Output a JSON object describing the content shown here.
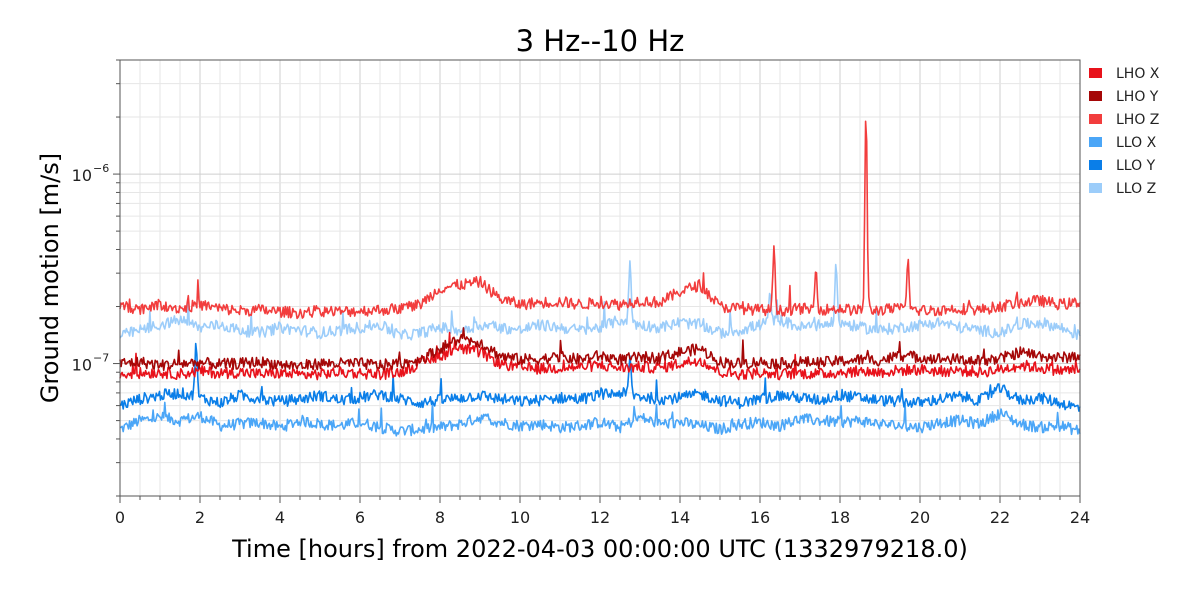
{
  "chart_data": {
    "type": "line",
    "title": "3 Hz--10 Hz",
    "xlabel": "Time [hours] from 2022-04-03 00:00:00 UTC (1332979218.0)",
    "ylabel": "Ground motion [m/s]",
    "x_range": [
      0,
      24
    ],
    "y_range": [
      2e-08,
      4e-06
    ],
    "y_scale": "log",
    "grid": true,
    "legend_position": "outside-right-top",
    "x_ticks": [
      0,
      2,
      4,
      6,
      8,
      10,
      12,
      14,
      16,
      18,
      20,
      22,
      24
    ],
    "x_tick_labels": [
      "0",
      "2",
      "4",
      "6",
      "8",
      "10",
      "12",
      "14",
      "16",
      "18",
      "20",
      "22",
      "24"
    ],
    "y_ticks": [
      1e-07,
      1e-06
    ],
    "y_tick_labels": [
      {
        "base": "10",
        "exp": "−7"
      },
      {
        "base": "10",
        "exp": "−6"
      }
    ],
    "series": [
      {
        "name": "LHO X",
        "color": "#e8121b",
        "x": [
          0,
          0.5,
          1,
          1.5,
          2,
          2.5,
          3,
          3.5,
          4,
          4.5,
          5,
          5.5,
          6,
          6.5,
          7,
          7.5,
          8,
          8.5,
          9,
          9.5,
          10,
          10.5,
          11,
          11.5,
          12,
          12.5,
          13,
          13.5,
          14,
          14.5,
          15,
          15.5,
          16,
          16.5,
          17,
          17.5,
          18,
          18.5,
          19,
          19.5,
          20,
          20.5,
          21,
          21.5,
          22,
          22.5,
          23,
          23.5,
          24
        ],
        "y": [
          8.8e-08,
          8.9e-08,
          9e-08,
          8.8e-08,
          9.1e-08,
          8.9e-08,
          9e-08,
          8.8e-08,
          8.9e-08,
          8.7e-08,
          8.8e-08,
          9e-08,
          8.9e-08,
          8.8e-08,
          9e-08,
          1e-07,
          1.1e-07,
          1.2e-07,
          1.15e-07,
          1e-07,
          9.5e-08,
          9.4e-08,
          9.5e-08,
          9.6e-08,
          9.8e-08,
          9.5e-08,
          9.6e-08,
          9.5e-08,
          1e-07,
          1.05e-07,
          9e-08,
          8.8e-08,
          8.9e-08,
          8.8e-08,
          8.9e-08,
          8.8e-08,
          9e-08,
          9.1e-08,
          9e-08,
          9.2e-08,
          9.3e-08,
          9.1e-08,
          9.2e-08,
          9e-08,
          9.3e-08,
          9.8e-08,
          9.5e-08,
          9.2e-08,
          9.3e-08
        ]
      },
      {
        "name": "LHO Y",
        "color": "#a50707",
        "x": [
          0,
          0.5,
          1,
          1.5,
          2,
          2.5,
          3,
          3.5,
          4,
          4.5,
          5,
          5.5,
          6,
          6.5,
          7,
          7.5,
          8,
          8.5,
          9,
          9.5,
          10,
          10.5,
          11,
          11.5,
          12,
          12.5,
          13,
          13.5,
          14,
          14.5,
          15,
          15.5,
          16,
          16.5,
          17,
          17.5,
          18,
          18.5,
          19,
          19.5,
          20,
          20.5,
          21,
          21.5,
          22,
          22.5,
          23,
          23.5,
          24
        ],
        "y": [
          1e-07,
          1.02e-07,
          9.8e-08,
          1e-07,
          1.01e-07,
          9.9e-08,
          1e-07,
          1.02e-07,
          9.9e-08,
          9.7e-08,
          1e-07,
          1e-07,
          1e-07,
          9.8e-08,
          1e-07,
          1.05e-07,
          1.2e-07,
          1.35e-07,
          1.3e-07,
          1.1e-07,
          1.05e-07,
          1.06e-07,
          1.08e-07,
          1.05e-07,
          1.1e-07,
          1.05e-07,
          1.08e-07,
          1.07e-07,
          1.15e-07,
          1.2e-07,
          1.02e-07,
          1e-07,
          1.02e-07,
          1e-07,
          1.02e-07,
          1.01e-07,
          1.03e-07,
          1.05e-07,
          1.04e-07,
          1.1e-07,
          1.08e-07,
          1.06e-07,
          1.05e-07,
          1.03e-07,
          1.06e-07,
          1.15e-07,
          1.1e-07,
          1.07e-07,
          1.1e-07
        ]
      },
      {
        "name": "LHO Z",
        "color": "#f23d3d",
        "x": [
          0,
          0.5,
          1,
          1.5,
          2,
          2.5,
          3,
          3.5,
          4,
          4.5,
          5,
          5.5,
          6,
          6.5,
          7,
          7.5,
          8,
          8.5,
          9,
          9.5,
          10,
          10.5,
          11,
          11.5,
          12,
          12.5,
          13,
          13.5,
          14,
          14.5,
          15,
          15.5,
          16,
          16.5,
          17,
          17.5,
          18,
          18.5,
          19,
          19.5,
          20,
          20.5,
          21,
          21.5,
          22,
          22.5,
          23,
          23.5,
          24
        ],
        "y": [
          2e-07,
          1.95e-07,
          2.05e-07,
          1.95e-07,
          2.05e-07,
          1.95e-07,
          1.9e-07,
          1.92e-07,
          1.88e-07,
          1.85e-07,
          1.9e-07,
          1.88e-07,
          1.9e-07,
          1.92e-07,
          1.95e-07,
          2.05e-07,
          2.5e-07,
          2.6e-07,
          2.7e-07,
          2.2e-07,
          2.05e-07,
          2.1e-07,
          2.12e-07,
          2.05e-07,
          2.1e-07,
          2.05e-07,
          2.15e-07,
          2.1e-07,
          2.4e-07,
          2.6e-07,
          2e-07,
          1.95e-07,
          1.92e-07,
          1.9e-07,
          1.95e-07,
          1.92e-07,
          1.95e-07,
          1.9e-07,
          1.92e-07,
          1.95e-07,
          1.9e-07,
          1.92e-07,
          1.95e-07,
          1.92e-07,
          2e-07,
          2.1e-07,
          2.15e-07,
          2.05e-07,
          2.1e-07
        ]
      },
      {
        "name": "LLO X",
        "color": "#4ba6f7",
        "x": [
          0,
          0.5,
          1,
          1.5,
          2,
          2.5,
          3,
          3.5,
          4,
          4.5,
          5,
          5.5,
          6,
          6.5,
          7,
          7.5,
          8,
          8.5,
          9,
          9.5,
          10,
          10.5,
          11,
          11.5,
          12,
          12.5,
          13,
          13.5,
          14,
          14.5,
          15,
          15.5,
          16,
          16.5,
          17,
          17.5,
          18,
          18.5,
          19,
          19.5,
          20,
          20.5,
          21,
          21.5,
          22,
          22.5,
          23,
          23.5,
          24
        ],
        "y": [
          4.5e-08,
          5e-08,
          5.2e-08,
          5e-08,
          5.3e-08,
          4.7e-08,
          4.8e-08,
          4.9e-08,
          4.6e-08,
          5e-08,
          4.8e-08,
          4.7e-08,
          4.9e-08,
          4.6e-08,
          4.4e-08,
          4.5e-08,
          4.6e-08,
          4.8e-08,
          5.2e-08,
          4.9e-08,
          4.7e-08,
          4.8e-08,
          4.6e-08,
          4.7e-08,
          4.9e-08,
          4.6e-08,
          5.2e-08,
          4.8e-08,
          4.9e-08,
          4.7e-08,
          4.5e-08,
          4.8e-08,
          4.9e-08,
          4.7e-08,
          5.1e-08,
          5e-08,
          4.9e-08,
          5e-08,
          4.8e-08,
          4.7e-08,
          4.6e-08,
          4.9e-08,
          5e-08,
          4.8e-08,
          5.5e-08,
          4.8e-08,
          4.6e-08,
          4.7e-08,
          4.4e-08
        ]
      },
      {
        "name": "LLO Y",
        "color": "#0a7ee8",
        "x": [
          0,
          0.5,
          1,
          1.5,
          2,
          2.5,
          3,
          3.5,
          4,
          4.5,
          5,
          5.5,
          6,
          6.5,
          7,
          7.5,
          8,
          8.5,
          9,
          9.5,
          10,
          10.5,
          11,
          11.5,
          12,
          12.5,
          13,
          13.5,
          14,
          14.5,
          15,
          15.5,
          16,
          16.5,
          17,
          17.5,
          18,
          18.5,
          19,
          19.5,
          20,
          20.5,
          21,
          21.5,
          22,
          22.5,
          23,
          23.5,
          24
        ],
        "y": [
          6e-08,
          6.5e-08,
          6.8e-08,
          7e-08,
          6.6e-08,
          6.2e-08,
          6.8e-08,
          6.5e-08,
          6.3e-08,
          6.5e-08,
          6.8e-08,
          6.4e-08,
          6.6e-08,
          6.9e-08,
          6.5e-08,
          6.2e-08,
          6.4e-08,
          6.6e-08,
          6.8e-08,
          6.5e-08,
          6.3e-08,
          6.4e-08,
          6.6e-08,
          6.5e-08,
          6.8e-08,
          7e-08,
          6.7e-08,
          6.5e-08,
          6.6e-08,
          6.9e-08,
          6.4e-08,
          6.2e-08,
          6.5e-08,
          6.8e-08,
          6.6e-08,
          6.4e-08,
          6.8e-08,
          6.6e-08,
          6.4e-08,
          6.3e-08,
          6.2e-08,
          6.5e-08,
          6.7e-08,
          6.4e-08,
          7.4e-08,
          6.4e-08,
          6.6e-08,
          6.2e-08,
          5.8e-08
        ]
      },
      {
        "name": "LLO Z",
        "color": "#9ccdfa",
        "x": [
          0,
          0.5,
          1,
          1.5,
          2,
          2.5,
          3,
          3.5,
          4,
          4.5,
          5,
          5.5,
          6,
          6.5,
          7,
          7.5,
          8,
          8.5,
          9,
          9.5,
          10,
          10.5,
          11,
          11.5,
          12,
          12.5,
          13,
          13.5,
          14,
          14.5,
          15,
          15.5,
          16,
          16.5,
          17,
          17.5,
          18,
          18.5,
          19,
          19.5,
          20,
          20.5,
          21,
          21.5,
          22,
          22.5,
          23,
          23.5,
          24
        ],
        "y": [
          1.4e-07,
          1.5e-07,
          1.6e-07,
          1.7e-07,
          1.55e-07,
          1.6e-07,
          1.5e-07,
          1.45e-07,
          1.55e-07,
          1.5e-07,
          1.45e-07,
          1.5e-07,
          1.55e-07,
          1.6e-07,
          1.4e-07,
          1.45e-07,
          1.55e-07,
          1.5e-07,
          1.6e-07,
          1.55e-07,
          1.5e-07,
          1.6e-07,
          1.55e-07,
          1.5e-07,
          1.55e-07,
          1.7e-07,
          1.6e-07,
          1.55e-07,
          1.65e-07,
          1.6e-07,
          1.45e-07,
          1.5e-07,
          1.6e-07,
          1.7e-07,
          1.55e-07,
          1.6e-07,
          1.65e-07,
          1.55e-07,
          1.5e-07,
          1.55e-07,
          1.6e-07,
          1.65e-07,
          1.55e-07,
          1.5e-07,
          1.45e-07,
          1.6e-07,
          1.65e-07,
          1.55e-07,
          1.4e-07
        ]
      }
    ],
    "spikes": [
      {
        "series": "LHO Z",
        "x": 16.35,
        "y": 4.2e-07
      },
      {
        "series": "LHO Z",
        "x": 17.4,
        "y": 3.2e-07
      },
      {
        "series": "LHO Z",
        "x": 18.65,
        "y": 2.2e-06
      },
      {
        "series": "LHO Z",
        "x": 19.7,
        "y": 3.6e-07
      },
      {
        "series": "LLO Z",
        "x": 12.75,
        "y": 3.5e-07
      },
      {
        "series": "LLO Z",
        "x": 17.9,
        "y": 3.4e-07
      },
      {
        "series": "LLO Z",
        "x": 16.25,
        "y": 2.4e-07
      },
      {
        "series": "LLO Y",
        "x": 1.9,
        "y": 1.3e-07
      },
      {
        "series": "LLO Y",
        "x": 12.75,
        "y": 1.1e-07
      }
    ]
  }
}
